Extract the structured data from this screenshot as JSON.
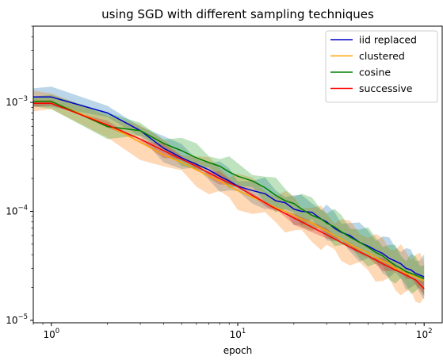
{
  "chart_data": {
    "type": "line",
    "title": "using SGD with different sampling techniques",
    "xlabel": "epoch",
    "ylabel": "",
    "xscale": "log",
    "yscale": "log",
    "xlim": [
      0.8,
      125
    ],
    "ylim": [
      9.5e-06,
      0.005
    ],
    "x_ticks": [
      {
        "value": 1,
        "base": "10",
        "exp": "0"
      },
      {
        "value": 10,
        "base": "10",
        "exp": "1"
      },
      {
        "value": 100,
        "base": "10",
        "exp": "2"
      }
    ],
    "y_ticks": [
      {
        "value": 1e-05,
        "base": "10",
        "exp": "−5"
      },
      {
        "value": 0.0001,
        "base": "10",
        "exp": "−4"
      },
      {
        "value": 0.001,
        "base": "10",
        "exp": "−3"
      }
    ],
    "grid": false,
    "legend_position": "top-right",
    "series": [
      {
        "name": "iid replaced",
        "color": "#0000cc",
        "band_color": "#1f77b4",
        "x": [
          0.8,
          1,
          2,
          3,
          4,
          5,
          6,
          7,
          8,
          9,
          10,
          12,
          14,
          16,
          18,
          20,
          22,
          25,
          28,
          30,
          33,
          36,
          40,
          45,
          50,
          55,
          60,
          65,
          70,
          75,
          80,
          85,
          90,
          95,
          100
        ],
        "y": [
          0.00112,
          0.00112,
          0.0008,
          0.00055,
          0.00038,
          0.00031,
          0.00027,
          0.00024,
          0.00021,
          0.00019,
          0.00017,
          0.000155,
          0.000145,
          0.000125,
          0.00012,
          0.000105,
          0.0001,
          9.8e-05,
          8.5e-05,
          8e-05,
          7e-05,
          6.4e-05,
          6e-05,
          5.2e-05,
          4.8e-05,
          4.4e-05,
          4.1e-05,
          3.7e-05,
          3.5e-05,
          3.3e-05,
          3e-05,
          2.9e-05,
          2.7e-05,
          2.6e-05,
          2.5e-05
        ],
        "band": [
          1.2,
          1.2,
          1.2,
          1.22,
          1.22,
          1.22,
          1.22,
          1.24,
          1.24,
          1.25,
          1.25,
          1.25,
          1.26,
          1.26,
          1.27,
          1.28,
          1.28,
          1.3,
          1.32,
          1.32,
          1.33,
          1.35,
          1.35,
          1.36,
          1.38,
          1.38,
          1.4,
          1.4,
          1.42,
          1.42,
          1.42,
          1.43,
          1.44,
          1.44,
          1.45
        ]
      },
      {
        "name": "clustered",
        "color": "#ffa500",
        "band_color": "#ff7f0e",
        "x": [
          0.8,
          1,
          2,
          3,
          4,
          5,
          6,
          7,
          8,
          9,
          10,
          12,
          14,
          16,
          18,
          20,
          22,
          25,
          28,
          30,
          33,
          36,
          40,
          45,
          50,
          55,
          60,
          65,
          70,
          75,
          80,
          85,
          90,
          95,
          100
        ],
        "y": [
          0.00102,
          0.00102,
          0.00062,
          0.00043,
          0.00033,
          0.00028,
          0.00024,
          0.00021,
          0.00019,
          0.00017,
          0.000155,
          0.000135,
          0.00012,
          0.000108,
          0.0001,
          9.2e-05,
          8.5e-05,
          7.8e-05,
          7e-05,
          6.6e-05,
          6e-05,
          5.6e-05,
          5e-05,
          4.5e-05,
          4.2e-05,
          3.8e-05,
          3.5e-05,
          3.3e-05,
          3e-05,
          2.9e-05,
          2.7e-05,
          2.6e-05,
          2.5e-05,
          2.4e-05,
          2.3e-05
        ],
        "band": [
          1.22,
          1.22,
          1.3,
          1.3,
          1.32,
          1.32,
          1.34,
          1.34,
          1.35,
          1.36,
          1.36,
          1.37,
          1.38,
          1.38,
          1.4,
          1.4,
          1.42,
          1.42,
          1.44,
          1.44,
          1.46,
          1.46,
          1.48,
          1.48,
          1.5,
          1.5,
          1.52,
          1.52,
          1.54,
          1.54,
          1.55,
          1.55,
          1.56,
          1.56,
          1.57
        ]
      },
      {
        "name": "cosine",
        "color": "#008000",
        "band_color": "#2ca02c",
        "x": [
          0.8,
          1,
          2,
          3,
          4,
          5,
          6,
          7,
          8,
          9,
          10,
          12,
          14,
          16,
          18,
          20,
          22,
          25,
          28,
          30,
          33,
          36,
          40,
          45,
          50,
          55,
          60,
          65,
          70,
          75,
          80,
          85,
          90,
          95,
          100
        ],
        "y": [
          0.00102,
          0.00102,
          0.0006,
          0.00055,
          0.00042,
          0.00036,
          0.00031,
          0.00028,
          0.00026,
          0.00023,
          0.00021,
          0.00019,
          0.000165,
          0.00014,
          0.000125,
          0.000118,
          0.000105,
          9.2e-05,
          8.5e-05,
          7.8e-05,
          7.2e-05,
          6.5e-05,
          5.8e-05,
          5.2e-05,
          4.7e-05,
          4.2e-05,
          3.9e-05,
          3.5e-05,
          3.2e-05,
          3e-05,
          2.8e-05,
          2.7e-05,
          2.6e-05,
          2.5e-05,
          2.4e-05
        ],
        "band": [
          1.15,
          1.15,
          1.2,
          1.22,
          1.22,
          1.24,
          1.24,
          1.25,
          1.25,
          1.26,
          1.26,
          1.28,
          1.28,
          1.3,
          1.3,
          1.3,
          1.32,
          1.32,
          1.32,
          1.34,
          1.34,
          1.34,
          1.35,
          1.35,
          1.36,
          1.36,
          1.37,
          1.37,
          1.38,
          1.38,
          1.38,
          1.39,
          1.39,
          1.4,
          1.4
        ]
      },
      {
        "name": "successive",
        "color": "#ff0000",
        "band_color": "#d62728",
        "x": [
          0.8,
          1,
          2,
          3,
          4,
          5,
          6,
          7,
          8,
          10,
          15,
          20,
          30,
          40,
          50,
          60,
          70,
          80,
          90,
          100
        ],
        "y": [
          0.00098,
          0.00098,
          0.00062,
          0.00046,
          0.00036,
          0.0003,
          0.00026,
          0.000225,
          0.0002,
          0.000168,
          0.000112,
          8.7e-05,
          6.1e-05,
          4.7e-05,
          3.9e-05,
          3.3e-05,
          2.9e-05,
          2.6e-05,
          2.35e-05,
          1.95e-05
        ],
        "band": [
          1.04,
          1.04,
          1.04,
          1.04,
          1.04,
          1.04,
          1.04,
          1.04,
          1.04,
          1.04,
          1.04,
          1.04,
          1.04,
          1.04,
          1.04,
          1.04,
          1.04,
          1.04,
          1.04,
          1.04
        ]
      }
    ]
  }
}
